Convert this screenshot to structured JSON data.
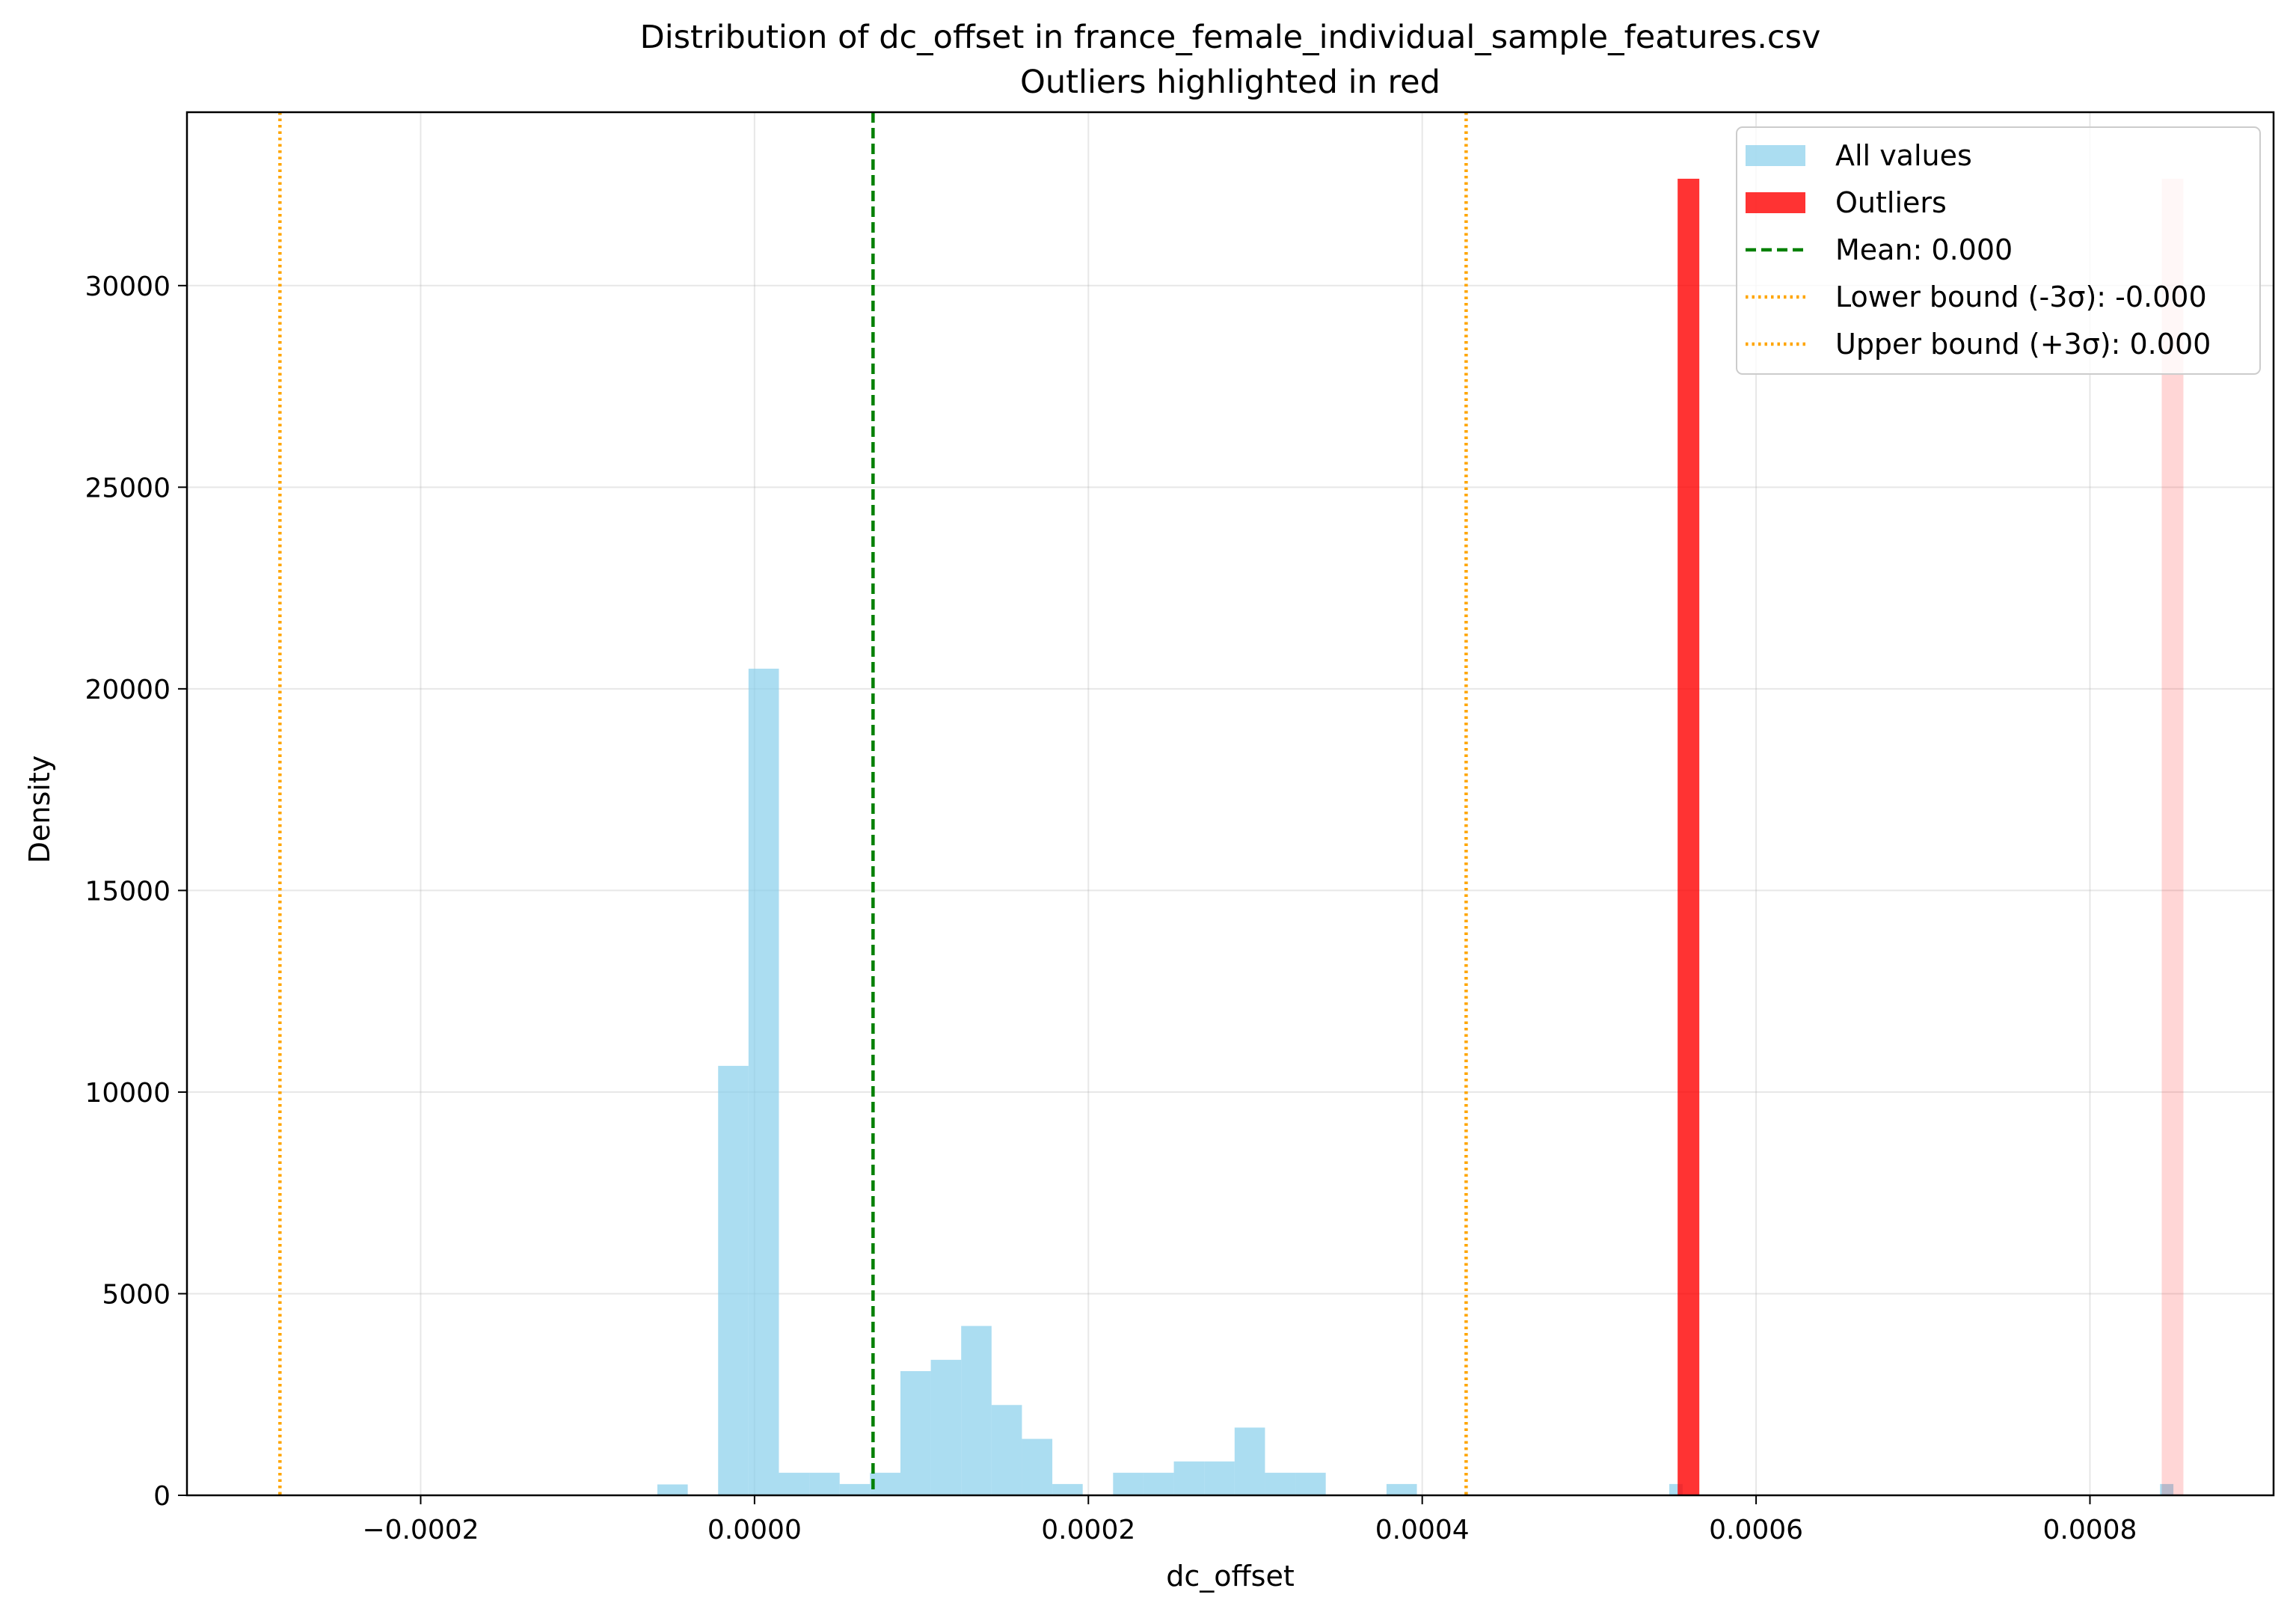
{
  "chart_data": {
    "type": "bar",
    "title": "Distribution of dc_offset in france_female_individual_sample_features.csv",
    "subtitle": "Outliers highlighted in red",
    "xlabel": "dc_offset",
    "ylabel": "Density",
    "xlim": [
      -0.00034,
      0.00091
    ],
    "ylim": [
      0,
      34300
    ],
    "xticks": [
      -0.0002,
      0.0,
      0.0002,
      0.0004,
      0.0006,
      0.0008
    ],
    "xtick_labels": [
      "−0.0002",
      "0.0000",
      "0.0002",
      "0.0004",
      "0.0006",
      "0.0008"
    ],
    "yticks": [
      0,
      5000,
      10000,
      15000,
      20000,
      25000,
      30000
    ],
    "ytick_labels": [
      "0",
      "5000",
      "10000",
      "15000",
      "20000",
      "25000",
      "30000"
    ],
    "grid": true,
    "legend_position": "top-right",
    "colors": {
      "all_values": "#87ceeb",
      "outliers": "#ff0000",
      "mean": "#008000",
      "bounds": "#ffa500"
    },
    "series": [
      {
        "name": "All values",
        "bins": [
          {
            "x0": -5.82e-05,
            "x1": -4e-05,
            "y": 270
          },
          {
            "x0": -2.18e-05,
            "x1": -3.6e-06,
            "y": 10650
          },
          {
            "x0": -3.6e-06,
            "x1": 1.46e-05,
            "y": 20500
          },
          {
            "x0": 1.46e-05,
            "x1": 3.28e-05,
            "y": 560
          },
          {
            "x0": 3.28e-05,
            "x1": 5.1e-05,
            "y": 560
          },
          {
            "x0": 5.1e-05,
            "x1": 6.92e-05,
            "y": 280
          },
          {
            "x0": 6.92e-05,
            "x1": 8.74e-05,
            "y": 560
          },
          {
            "x0": 8.74e-05,
            "x1": 0.0001056,
            "y": 3080
          },
          {
            "x0": 0.0001056,
            "x1": 0.0001238,
            "y": 3360
          },
          {
            "x0": 0.0001238,
            "x1": 0.000142,
            "y": 4200
          },
          {
            "x0": 0.000142,
            "x1": 0.0001602,
            "y": 2240
          },
          {
            "x0": 0.0001602,
            "x1": 0.0001784,
            "y": 1400
          },
          {
            "x0": 0.0001784,
            "x1": 0.0001966,
            "y": 280
          },
          {
            "x0": 0.0002148,
            "x1": 0.000233,
            "y": 560
          },
          {
            "x0": 0.000233,
            "x1": 0.0002512,
            "y": 560
          },
          {
            "x0": 0.0002512,
            "x1": 0.0002694,
            "y": 840
          },
          {
            "x0": 0.0002694,
            "x1": 0.0002876,
            "y": 840
          },
          {
            "x0": 0.0002876,
            "x1": 0.0003058,
            "y": 1680
          },
          {
            "x0": 0.0003058,
            "x1": 0.000324,
            "y": 560
          },
          {
            "x0": 0.000324,
            "x1": 0.0003422,
            "y": 560
          },
          {
            "x0": 0.0003786,
            "x1": 0.0003968,
            "y": 280
          },
          {
            "x0": 0.000548,
            "x1": 0.000556,
            "y": 280
          },
          {
            "x0": 0.000842,
            "x1": 0.00085,
            "y": 280
          }
        ]
      },
      {
        "name": "Outliers",
        "bins": [
          {
            "x0": 0.000553,
            "x1": 0.000566,
            "y": 32650
          },
          {
            "x0": 0.000843,
            "x1": 0.000856,
            "y": 32650
          }
        ]
      }
    ],
    "reference_lines": [
      {
        "name": "Mean: 0.000",
        "x": 7.1e-05,
        "style": "dashed",
        "color": "#008000"
      },
      {
        "name": "Lower bound (-3σ): -0.000",
        "x": -0.0002843,
        "style": "dotted",
        "color": "#ffa500"
      },
      {
        "name": "Upper bound (+3σ): 0.000",
        "x": 0.0004263,
        "style": "dotted",
        "color": "#ffa500"
      }
    ],
    "legend": [
      {
        "label": "All values",
        "kind": "patch",
        "color": "#87ceeb"
      },
      {
        "label": "Outliers",
        "kind": "patch",
        "color": "#ff0000"
      },
      {
        "label": "Mean: 0.000",
        "kind": "dashed",
        "color": "#008000"
      },
      {
        "label": "Lower bound (-3σ): -0.000",
        "kind": "dotted",
        "color": "#ffa500"
      },
      {
        "label": "Upper bound (+3σ): 0.000",
        "kind": "dotted",
        "color": "#ffa500"
      }
    ]
  }
}
